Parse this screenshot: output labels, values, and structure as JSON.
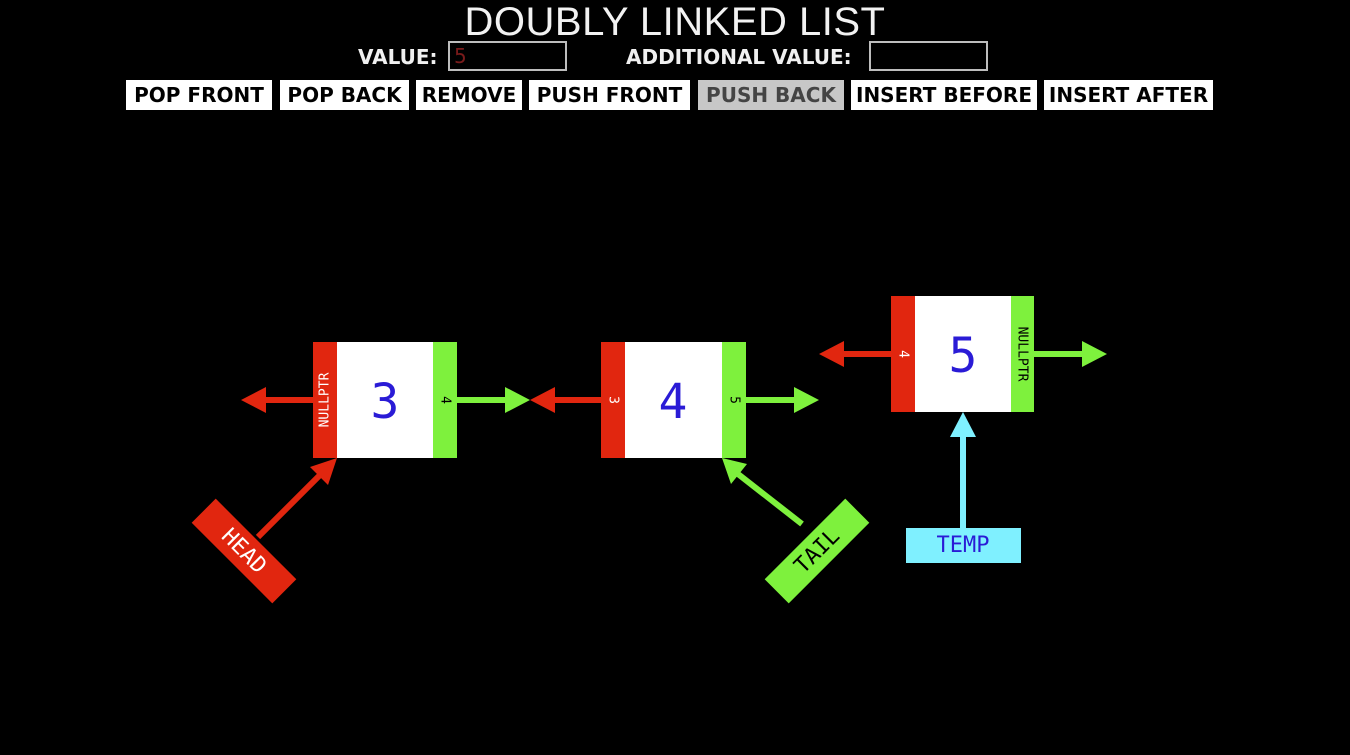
{
  "header": {
    "title": "DOUBLY LINKED LIST"
  },
  "form": {
    "value_label": "VALUE:",
    "value_input": "5",
    "additional_label": "ADDITIONAL VALUE:",
    "additional_input": ""
  },
  "toolbar": {
    "buttons": [
      {
        "label": "POP FRONT",
        "active": false
      },
      {
        "label": "POP BACK",
        "active": false
      },
      {
        "label": "REMOVE",
        "active": false
      },
      {
        "label": "PUSH FRONT",
        "active": false
      },
      {
        "label": "PUSH BACK",
        "active": true
      },
      {
        "label": "INSERT BEFORE",
        "active": false
      },
      {
        "label": "INSERT AFTER",
        "active": false
      }
    ]
  },
  "nodes": [
    {
      "value": "3",
      "prev": "NULLPTR",
      "next": "4"
    },
    {
      "value": "4",
      "prev": "3",
      "next": "5"
    },
    {
      "value": "5",
      "prev": "4",
      "next": "NULLPTR"
    }
  ],
  "pointers": {
    "head": "HEAD",
    "tail": "TAIL",
    "temp": "TEMP"
  },
  "colors": {
    "prev": "#e1260f",
    "next": "#7ef13d",
    "temp": "#7ff0ff",
    "value_text": "#2a1bd6",
    "node_fill": "#ffffff"
  }
}
